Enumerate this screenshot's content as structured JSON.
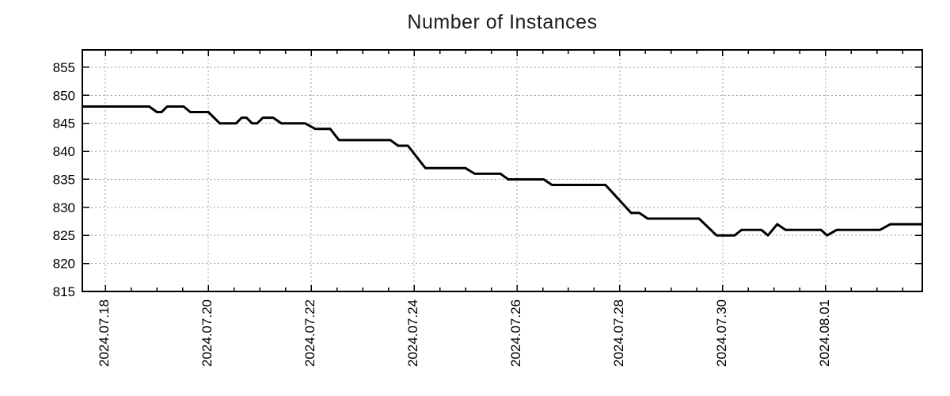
{
  "chart_data": {
    "type": "line",
    "title": "Number of Instances",
    "x_axis": {
      "range_days": [
        -0.45,
        15.88
      ],
      "major_ticks": [
        {
          "day": 0,
          "label": "2024.07.18"
        },
        {
          "day": 2,
          "label": "2024.07.20"
        },
        {
          "day": 4,
          "label": "2024.07.22"
        },
        {
          "day": 6,
          "label": "2024.07.24"
        },
        {
          "day": 8,
          "label": "2024.07.26"
        },
        {
          "day": 10,
          "label": "2024.07.28"
        },
        {
          "day": 12,
          "label": "2024.07.30"
        },
        {
          "day": 14,
          "label": "2024.08.01"
        }
      ],
      "minor_tick_step_days": 0.5
    },
    "y_axis": {
      "range": [
        815,
        858.1
      ],
      "ticks": [
        815,
        820,
        825,
        830,
        835,
        840,
        845,
        850,
        855
      ]
    },
    "grid": {
      "color": "#9c9c9c",
      "dash": "2,3",
      "on": true
    },
    "legend": {
      "visible": false
    },
    "series": [
      {
        "name": "Number of Instances",
        "color": "#000000",
        "line_width": 3,
        "points": [
          [
            -0.45,
            848
          ],
          [
            0.85,
            848
          ],
          [
            1.0,
            847
          ],
          [
            1.09,
            847
          ],
          [
            1.2,
            848
          ],
          [
            1.52,
            848
          ],
          [
            1.65,
            847
          ],
          [
            2.0,
            847
          ],
          [
            2.22,
            845
          ],
          [
            2.54,
            845
          ],
          [
            2.65,
            846
          ],
          [
            2.74,
            846
          ],
          [
            2.85,
            845
          ],
          [
            2.95,
            845
          ],
          [
            3.06,
            846
          ],
          [
            3.26,
            846
          ],
          [
            3.42,
            845
          ],
          [
            3.88,
            845
          ],
          [
            4.08,
            844
          ],
          [
            4.37,
            844
          ],
          [
            4.54,
            842
          ],
          [
            5.54,
            842
          ],
          [
            5.69,
            841
          ],
          [
            5.88,
            841
          ],
          [
            6.22,
            837
          ],
          [
            7.0,
            837
          ],
          [
            7.18,
            836
          ],
          [
            7.68,
            836
          ],
          [
            7.83,
            835
          ],
          [
            8.52,
            835
          ],
          [
            8.68,
            834
          ],
          [
            9.72,
            834
          ],
          [
            9.92,
            832
          ],
          [
            10.22,
            829
          ],
          [
            10.38,
            829
          ],
          [
            10.54,
            828
          ],
          [
            11.54,
            828
          ],
          [
            11.88,
            825
          ],
          [
            12.23,
            825
          ],
          [
            12.37,
            826
          ],
          [
            12.75,
            826
          ],
          [
            12.88,
            825
          ],
          [
            13.06,
            827
          ],
          [
            13.22,
            826
          ],
          [
            13.91,
            826
          ],
          [
            14.03,
            825
          ],
          [
            14.22,
            826
          ],
          [
            15.06,
            826
          ],
          [
            15.26,
            827
          ],
          [
            15.88,
            827
          ]
        ]
      }
    ],
    "style": {
      "border_color": "#000000",
      "text_color": "#000000",
      "tick_label_font_px": 17,
      "title_font_px": 25
    }
  }
}
